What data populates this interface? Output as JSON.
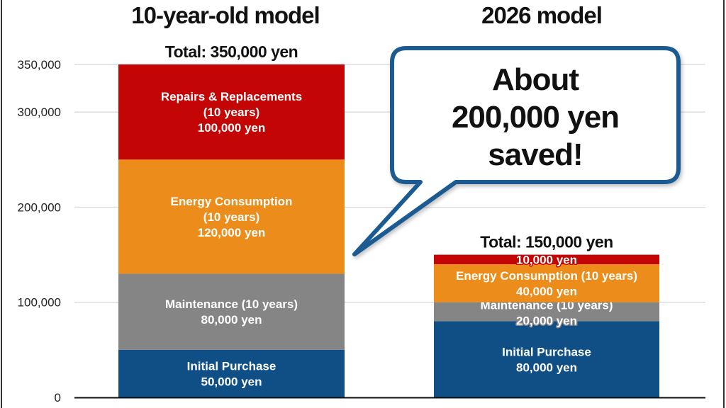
{
  "chart_data": {
    "type": "bar",
    "stacked": true,
    "title": "",
    "xlabel": "",
    "ylabel": "",
    "ylim": [
      0,
      350000
    ],
    "yticks": [
      0,
      100000,
      200000,
      300000,
      350000
    ],
    "ytick_labels": [
      "0",
      "100,000",
      "200,000",
      "300,000",
      "350,000"
    ],
    "grid": true,
    "categories": [
      "10-year-old model",
      "2026 model"
    ],
    "totals": [
      350000,
      150000
    ],
    "total_labels": [
      "Total: 350,000 yen",
      "Total: 150,000 yen"
    ],
    "series": [
      {
        "name": "Initial Purchase",
        "color": "#0f4f86",
        "values": [
          50000,
          80000
        ],
        "labels": [
          [
            "Initial Purchase",
            "50,000 yen"
          ],
          [
            "Initial Purchase",
            "80,000 yen"
          ]
        ]
      },
      {
        "name": "Maintenance (10 years)",
        "color": "#858585",
        "values": [
          80000,
          20000
        ],
        "labels": [
          [
            "Maintenance (10 years)",
            "80,000 yen"
          ],
          [
            "Maintenance (10 years)",
            "20,000 yen"
          ]
        ]
      },
      {
        "name": "Energy Consumption (10 years)",
        "color": "#ec8c1a",
        "values": [
          120000,
          40000
        ],
        "labels": [
          [
            "Energy Consumption",
            "(10 years)",
            "120,000 yen"
          ],
          [
            "Energy Consumption (10 years)",
            "40,000 yen"
          ]
        ]
      },
      {
        "name": "Repairs & Replacements (10 years)",
        "color": "#c40505",
        "values": [
          100000,
          10000
        ],
        "labels": [
          [
            "Repairs & Replacements",
            "(10 years)",
            "100,000 yen"
          ],
          [
            "10,000 yen"
          ]
        ]
      }
    ],
    "annotation": {
      "type": "speech-bubble",
      "lines": [
        "About",
        "200,000 yen",
        "saved!"
      ],
      "border_color": "#1a5a92",
      "points_to": "10-year-old model"
    }
  }
}
